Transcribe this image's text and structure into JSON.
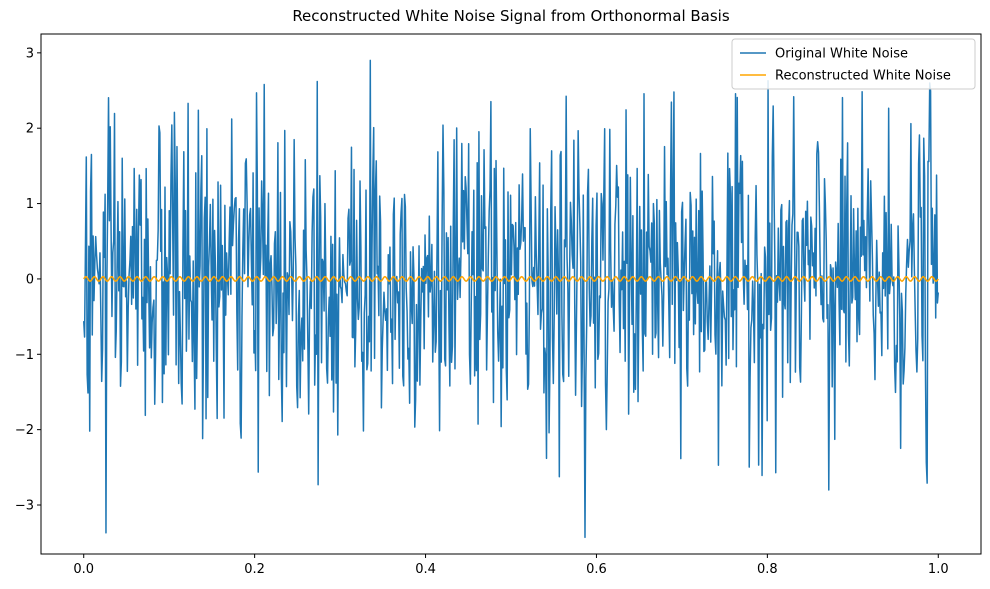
{
  "chart_data": {
    "type": "line",
    "title": "Reconstructed White Noise Signal from Orthonormal Basis",
    "xlabel": "",
    "ylabel": "",
    "xlim": [
      -0.05,
      1.05
    ],
    "ylim": [
      -3.65,
      3.25
    ],
    "xticks": [
      "0.0",
      "0.2",
      "0.4",
      "0.6",
      "0.8",
      "1.0"
    ],
    "xtick_values": [
      0.0,
      0.2,
      0.4,
      0.6,
      0.8,
      1.0
    ],
    "yticks": [
      "−3",
      "−2",
      "−1",
      "0",
      "1",
      "2",
      "3"
    ],
    "ytick_values": [
      -3,
      -2,
      -1,
      0,
      1,
      2,
      3
    ],
    "grid": false,
    "legend_position": "top-right",
    "series": [
      {
        "name": "Original White Noise",
        "color": "#1f77b4",
        "sample_count": 1000,
        "x_range": [
          0.0,
          1.0
        ],
        "noise_std": 1.0,
        "notable_points": [
          {
            "x": 0.0,
            "y": -0.56
          },
          {
            "x": 0.002,
            "y": 0.4
          },
          {
            "x": 0.007,
            "y": -2.02
          },
          {
            "x": 0.008,
            "y": 1.16
          },
          {
            "x": 0.026,
            "y": -3.37
          },
          {
            "x": 0.106,
            "y": 2.21
          },
          {
            "x": 0.211,
            "y": 2.58
          },
          {
            "x": 0.273,
            "y": 2.62
          },
          {
            "x": 0.335,
            "y": 2.9
          },
          {
            "x": 0.587,
            "y": -3.43
          },
          {
            "x": 0.801,
            "y": 2.63
          },
          {
            "x": 0.872,
            "y": -2.8
          },
          {
            "x": 0.99,
            "y": 2.6
          },
          {
            "x": 0.987,
            "y": -2.71
          },
          {
            "x": 1.0,
            "y": -0.18
          }
        ]
      },
      {
        "name": "Reconstructed White Noise",
        "color": "#ffa500",
        "sample_count": 1000,
        "x_range": [
          0.0,
          1.0
        ],
        "amplitude": 0.03,
        "cycles": 100
      }
    ]
  }
}
